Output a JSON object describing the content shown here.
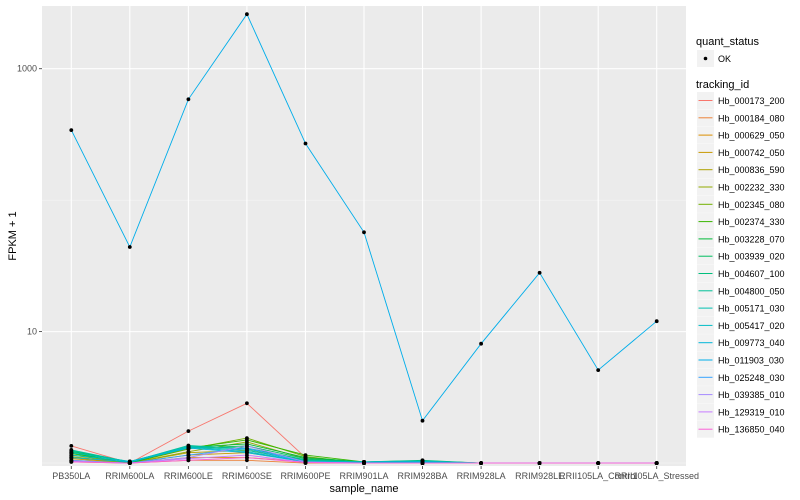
{
  "chart_data": {
    "type": "line",
    "xlabel": "sample_name",
    "ylabel": "FPKM + 1",
    "y_scale": "log10",
    "ylim": [
      0.95,
      3000
    ],
    "y_ticks": [
      {
        "value": 10,
        "label": "10"
      },
      {
        "value": 1000,
        "label": "1000"
      }
    ],
    "categories": [
      "PB350LA",
      "RRIM600LA",
      "RRIM600LE",
      "RRIM600SE",
      "RRIM600PE",
      "RRIM901LA",
      "RRIM928BA",
      "RRIM928LA",
      "RRIM928LE",
      "RRII105LA_Control",
      "RRII105LA_Stressed"
    ],
    "legend": {
      "quant_title": "quant_status",
      "quant_label": "OK",
      "series_title": "tracking_id",
      "position": "right"
    },
    "series": [
      {
        "name": "Hb_000173_200",
        "color": "#F8766D",
        "values": [
          1.35,
          1.0,
          1.75,
          2.85,
          1.1,
          1.0,
          1.0,
          1.0,
          1.0,
          1.0,
          1.0
        ]
      },
      {
        "name": "Hb_000184_080",
        "color": "#EC8239",
        "values": [
          1.02,
          1.0,
          1.05,
          1.05,
          1.0,
          1.0,
          1.0,
          1.0,
          1.0,
          1.0,
          1.0
        ]
      },
      {
        "name": "Hb_000629_050",
        "color": "#DB8E00",
        "values": [
          1.05,
          1.0,
          1.1,
          1.1,
          1.02,
          1.0,
          1.0,
          1.0,
          1.0,
          1.0,
          1.0
        ]
      },
      {
        "name": "Hb_000742_050",
        "color": "#C79800",
        "values": [
          1.08,
          1.0,
          1.15,
          1.2,
          1.03,
          1.0,
          1.0,
          1.0,
          1.0,
          1.0,
          1.0
        ]
      },
      {
        "name": "Hb_000836_590",
        "color": "#AFA100",
        "values": [
          1.1,
          1.0,
          1.2,
          1.25,
          1.05,
          1.0,
          1.0,
          1.0,
          1.0,
          1.0,
          1.0
        ]
      },
      {
        "name": "Hb_002232_330",
        "color": "#93AA00",
        "values": [
          1.12,
          1.0,
          1.22,
          1.45,
          1.08,
          1.0,
          1.0,
          1.0,
          1.0,
          1.0,
          1.0
        ]
      },
      {
        "name": "Hb_002345_080",
        "color": "#72B000",
        "values": [
          1.15,
          1.0,
          1.28,
          1.55,
          1.12,
          1.0,
          1.0,
          1.0,
          1.0,
          1.0,
          1.0
        ]
      },
      {
        "name": "Hb_002374_330",
        "color": "#39B600",
        "values": [
          1.18,
          1.0,
          1.3,
          1.5,
          1.15,
          1.02,
          1.0,
          1.0,
          1.0,
          1.0,
          1.0
        ]
      },
      {
        "name": "Hb_003228_070",
        "color": "#00BA38",
        "values": [
          1.2,
          1.0,
          1.32,
          1.4,
          1.1,
          1.02,
          1.0,
          1.0,
          1.0,
          1.0,
          1.0
        ]
      },
      {
        "name": "Hb_003939_020",
        "color": "#00BD5F",
        "values": [
          1.22,
          1.02,
          1.3,
          1.35,
          1.08,
          1.02,
          1.05,
          1.0,
          1.0,
          1.0,
          1.0
        ]
      },
      {
        "name": "Hb_004607_100",
        "color": "#00BF7D",
        "values": [
          1.24,
          1.02,
          1.34,
          1.3,
          1.06,
          1.02,
          1.02,
          1.0,
          1.0,
          1.0,
          1.0
        ]
      },
      {
        "name": "Hb_004800_050",
        "color": "#00C097",
        "values": [
          1.26,
          1.02,
          1.36,
          1.28,
          1.05,
          1.02,
          1.04,
          1.0,
          1.0,
          1.0,
          1.0
        ]
      },
      {
        "name": "Hb_005171_030",
        "color": "#00C0AF",
        "values": [
          1.2,
          1.03,
          1.34,
          1.25,
          1.04,
          1.02,
          1.04,
          1.0,
          1.0,
          1.0,
          1.0
        ]
      },
      {
        "name": "Hb_005417_020",
        "color": "#00BCC5",
        "values": [
          1.15,
          1.03,
          1.32,
          1.22,
          1.03,
          1.02,
          1.03,
          1.0,
          1.0,
          1.0,
          1.0
        ]
      },
      {
        "name": "Hb_009773_040",
        "color": "#00B6D9",
        "values": [
          1.1,
          1.02,
          1.3,
          1.2,
          1.02,
          1.01,
          1.02,
          1.0,
          1.0,
          1.0,
          1.0
        ]
      },
      {
        "name": "Hb_011903_030",
        "color": "#00ADEA",
        "values": [
          341,
          44,
          585,
          2600,
          270,
          57,
          2.1,
          8.1,
          28,
          5.1,
          12
        ]
      },
      {
        "name": "Hb_025248_030",
        "color": "#35A2FF",
        "values": [
          1.05,
          1.0,
          1.15,
          1.3,
          1.02,
          1.0,
          1.0,
          1.0,
          1.0,
          1.0,
          1.0
        ]
      },
      {
        "name": "Hb_039385_010",
        "color": "#A58AFF",
        "values": [
          1.04,
          1.0,
          1.1,
          1.35,
          1.02,
          1.0,
          1.0,
          1.0,
          1.0,
          1.0,
          1.0
        ]
      },
      {
        "name": "Hb_129319_010",
        "color": "#C77CFF",
        "values": [
          1.03,
          1.0,
          1.08,
          1.15,
          1.01,
          1.0,
          1.0,
          1.0,
          1.0,
          1.0,
          1.0
        ]
      },
      {
        "name": "Hb_136850_040",
        "color": "#FB61D7",
        "values": [
          1.02,
          1.0,
          1.05,
          1.1,
          1.01,
          1.0,
          1.0,
          1.0,
          1.0,
          1.0,
          1.0
        ]
      }
    ]
  }
}
